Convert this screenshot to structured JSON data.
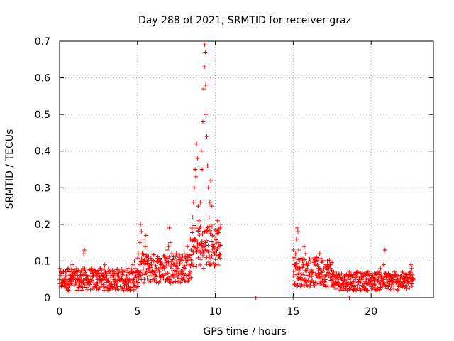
{
  "chart_data": {
    "type": "scatter",
    "title": "Day 288 of 2021, SRMTID for receiver graz",
    "xlabel": "GPS time / hours",
    "ylabel": "SRMTID / TECUs",
    "xlim": [
      0,
      24
    ],
    "ylim": [
      0,
      0.7
    ],
    "x_ticks": [
      0,
      5,
      10,
      15,
      20
    ],
    "x_tick_labels": [
      "0",
      "5",
      "10",
      "15",
      "20"
    ],
    "y_ticks": [
      0,
      0.1,
      0.2,
      0.3,
      0.4,
      0.5,
      0.6,
      0.7
    ],
    "y_tick_labels": [
      "0",
      "0.1",
      "0.2",
      "0.3",
      "0.4",
      "0.5",
      "0.6",
      "0.7"
    ],
    "grid": true,
    "colors": {
      "series": "#ff0000",
      "grid": "#a0a0a0",
      "axis": "#000000"
    },
    "series": [
      {
        "name": "SRMTID",
        "marker": "plus",
        "points": [
          [
            0.0,
            0.05
          ],
          [
            0.1,
            0.03
          ],
          [
            0.15,
            0.06
          ],
          [
            0.2,
            0.04
          ],
          [
            0.25,
            0.07
          ],
          [
            0.3,
            0.05
          ],
          [
            0.35,
            0.03
          ],
          [
            0.4,
            0.06
          ],
          [
            0.5,
            0.04
          ],
          [
            0.55,
            0.08
          ],
          [
            0.6,
            0.05
          ],
          [
            0.7,
            0.06
          ],
          [
            0.75,
            0.04
          ],
          [
            0.8,
            0.09
          ],
          [
            0.9,
            0.05
          ],
          [
            1.0,
            0.06
          ],
          [
            1.1,
            0.04
          ],
          [
            1.15,
            0.07
          ],
          [
            1.2,
            0.05
          ],
          [
            1.3,
            0.03
          ],
          [
            1.4,
            0.06
          ],
          [
            1.5,
            0.08
          ],
          [
            1.55,
            0.12
          ],
          [
            1.6,
            0.13
          ],
          [
            1.7,
            0.05
          ],
          [
            1.8,
            0.04
          ],
          [
            1.9,
            0.06
          ],
          [
            2.0,
            0.05
          ],
          [
            2.1,
            0.07
          ],
          [
            2.2,
            0.04
          ],
          [
            2.3,
            0.03
          ],
          [
            2.4,
            0.06
          ],
          [
            2.5,
            0.05
          ],
          [
            2.6,
            0.08
          ],
          [
            2.7,
            0.04
          ],
          [
            2.8,
            0.06
          ],
          [
            2.9,
            0.09
          ],
          [
            3.0,
            0.05
          ],
          [
            3.1,
            0.02
          ],
          [
            3.2,
            0.04
          ],
          [
            3.3,
            0.06
          ],
          [
            3.4,
            0.03
          ],
          [
            3.5,
            0.07
          ],
          [
            3.6,
            0.05
          ],
          [
            3.7,
            0.04
          ],
          [
            3.8,
            0.06
          ],
          [
            3.9,
            0.03
          ],
          [
            4.0,
            0.05
          ],
          [
            4.1,
            0.07
          ],
          [
            4.2,
            0.04
          ],
          [
            4.3,
            0.06
          ],
          [
            4.4,
            0.08
          ],
          [
            4.5,
            0.05
          ],
          [
            4.6,
            0.07
          ],
          [
            4.7,
            0.09
          ],
          [
            4.8,
            0.1
          ],
          [
            4.85,
            0.08
          ],
          [
            4.9,
            0.06
          ],
          [
            5.0,
            0.04
          ],
          [
            5.05,
            0.03
          ],
          [
            5.1,
            0.07
          ],
          [
            5.15,
            0.15
          ],
          [
            5.2,
            0.2
          ],
          [
            5.25,
            0.18
          ],
          [
            5.3,
            0.12
          ],
          [
            5.35,
            0.16
          ],
          [
            5.4,
            0.1
          ],
          [
            5.5,
            0.14
          ],
          [
            5.55,
            0.17
          ],
          [
            5.6,
            0.11
          ],
          [
            5.7,
            0.08
          ],
          [
            5.8,
            0.06
          ],
          [
            5.9,
            0.09
          ],
          [
            6.0,
            0.07
          ],
          [
            6.1,
            0.05
          ],
          [
            6.2,
            0.08
          ],
          [
            6.3,
            0.1
          ],
          [
            6.4,
            0.07
          ],
          [
            6.5,
            0.09
          ],
          [
            6.6,
            0.06
          ],
          [
            6.7,
            0.08
          ],
          [
            6.8,
            0.11
          ],
          [
            6.9,
            0.13
          ],
          [
            7.0,
            0.14
          ],
          [
            7.05,
            0.19
          ],
          [
            7.1,
            0.15
          ],
          [
            7.2,
            0.12
          ],
          [
            7.3,
            0.09
          ],
          [
            7.4,
            0.1
          ],
          [
            7.5,
            0.12
          ],
          [
            7.6,
            0.08
          ],
          [
            7.7,
            0.11
          ],
          [
            7.8,
            0.07
          ],
          [
            7.9,
            0.05
          ],
          [
            8.0,
            0.12
          ],
          [
            8.1,
            0.1
          ],
          [
            8.2,
            0.14
          ],
          [
            8.3,
            0.11
          ],
          [
            8.4,
            0.16
          ],
          [
            8.45,
            0.13
          ],
          [
            8.5,
            0.19
          ],
          [
            8.55,
            0.22
          ],
          [
            8.6,
            0.26
          ],
          [
            8.65,
            0.3
          ],
          [
            8.7,
            0.35
          ],
          [
            8.75,
            0.33
          ],
          [
            8.8,
            0.42
          ],
          [
            8.85,
            0.38
          ],
          [
            8.9,
            0.25
          ],
          [
            8.95,
            0.21
          ],
          [
            9.0,
            0.19
          ],
          [
            9.05,
            0.26
          ],
          [
            9.1,
            0.4
          ],
          [
            9.15,
            0.35
          ],
          [
            9.2,
            0.48
          ],
          [
            9.25,
            0.57
          ],
          [
            9.3,
            0.63
          ],
          [
            9.32,
            0.69
          ],
          [
            9.35,
            0.67
          ],
          [
            9.38,
            0.58
          ],
          [
            9.4,
            0.5
          ],
          [
            9.45,
            0.44
          ],
          [
            9.5,
            0.36
          ],
          [
            9.55,
            0.3
          ],
          [
            9.6,
            0.22
          ],
          [
            9.65,
            0.26
          ],
          [
            9.7,
            0.32
          ],
          [
            9.75,
            0.25
          ],
          [
            9.8,
            0.17
          ],
          [
            9.85,
            0.14
          ],
          [
            9.9,
            0.2
          ],
          [
            9.95,
            0.12
          ],
          [
            10.0,
            0.09
          ],
          [
            10.05,
            0.16
          ],
          [
            10.1,
            0.18
          ],
          [
            10.15,
            0.21
          ],
          [
            10.2,
            0.15
          ],
          [
            10.25,
            0.14
          ],
          [
            10.3,
            0.19
          ],
          [
            10.35,
            0.2
          ],
          [
            12.6,
            0.0
          ],
          [
            15.0,
            0.0
          ],
          [
            18.6,
            0.0
          ],
          [
            15.0,
            0.13
          ],
          [
            15.05,
            0.11
          ],
          [
            15.1,
            0.09
          ],
          [
            15.15,
            0.12
          ],
          [
            15.2,
            0.16
          ],
          [
            15.25,
            0.19
          ],
          [
            15.3,
            0.18
          ],
          [
            15.35,
            0.13
          ],
          [
            15.4,
            0.08
          ],
          [
            15.5,
            0.05
          ],
          [
            15.6,
            0.1
          ],
          [
            15.7,
            0.14
          ],
          [
            15.8,
            0.12
          ],
          [
            15.9,
            0.08
          ],
          [
            16.0,
            0.06
          ],
          [
            16.1,
            0.04
          ],
          [
            16.2,
            0.07
          ],
          [
            16.3,
            0.1
          ],
          [
            16.4,
            0.09
          ],
          [
            16.5,
            0.11
          ],
          [
            16.6,
            0.08
          ],
          [
            16.7,
            0.12
          ],
          [
            16.8,
            0.1
          ],
          [
            16.9,
            0.07
          ],
          [
            17.0,
            0.05
          ],
          [
            17.1,
            0.09
          ],
          [
            17.2,
            0.1
          ],
          [
            17.3,
            0.06
          ],
          [
            17.4,
            0.08
          ],
          [
            17.5,
            0.05
          ],
          [
            17.6,
            0.07
          ],
          [
            17.7,
            0.04
          ],
          [
            17.8,
            0.06
          ],
          [
            17.9,
            0.05
          ],
          [
            18.0,
            0.03
          ],
          [
            18.1,
            0.05
          ],
          [
            18.2,
            0.04
          ],
          [
            18.3,
            0.06
          ],
          [
            18.4,
            0.03
          ],
          [
            18.5,
            0.05
          ],
          [
            18.6,
            0.07
          ],
          [
            18.7,
            0.04
          ],
          [
            18.8,
            0.06
          ],
          [
            18.9,
            0.03
          ],
          [
            19.0,
            0.05
          ],
          [
            19.1,
            0.07
          ],
          [
            19.2,
            0.04
          ],
          [
            19.3,
            0.02
          ],
          [
            19.4,
            0.05
          ],
          [
            19.5,
            0.03
          ],
          [
            19.6,
            0.06
          ],
          [
            19.7,
            0.04
          ],
          [
            19.8,
            0.07
          ],
          [
            19.9,
            0.05
          ],
          [
            20.0,
            0.03
          ],
          [
            20.1,
            0.06
          ],
          [
            20.2,
            0.04
          ],
          [
            20.3,
            0.05
          ],
          [
            20.4,
            0.07
          ],
          [
            20.5,
            0.04
          ],
          [
            20.6,
            0.08
          ],
          [
            20.7,
            0.06
          ],
          [
            20.8,
            0.09
          ],
          [
            20.9,
            0.13
          ],
          [
            21.0,
            0.05
          ],
          [
            21.1,
            0.03
          ],
          [
            21.2,
            0.04
          ],
          [
            21.3,
            0.06
          ],
          [
            21.4,
            0.05
          ],
          [
            21.5,
            0.07
          ],
          [
            21.6,
            0.04
          ],
          [
            21.7,
            0.05
          ],
          [
            21.8,
            0.03
          ],
          [
            21.9,
            0.06
          ],
          [
            22.0,
            0.04
          ],
          [
            22.1,
            0.05
          ],
          [
            22.2,
            0.03
          ],
          [
            22.3,
            0.06
          ],
          [
            22.4,
            0.04
          ],
          [
            22.5,
            0.07
          ],
          [
            22.55,
            0.09
          ],
          [
            22.6,
            0.08
          ],
          [
            22.65,
            0.06
          ],
          [
            22.7,
            0.05
          ]
        ],
        "dense_bands": [
          {
            "from": 0.0,
            "to": 5.0,
            "low": 0.02,
            "high": 0.08
          },
          {
            "from": 5.0,
            "to": 8.5,
            "low": 0.04,
            "high": 0.12
          },
          {
            "from": 8.5,
            "to": 10.35,
            "low": 0.08,
            "high": 0.2
          },
          {
            "from": 15.0,
            "to": 17.5,
            "low": 0.03,
            "high": 0.11
          },
          {
            "from": 17.5,
            "to": 22.7,
            "low": 0.02,
            "high": 0.07
          }
        ]
      }
    ]
  }
}
